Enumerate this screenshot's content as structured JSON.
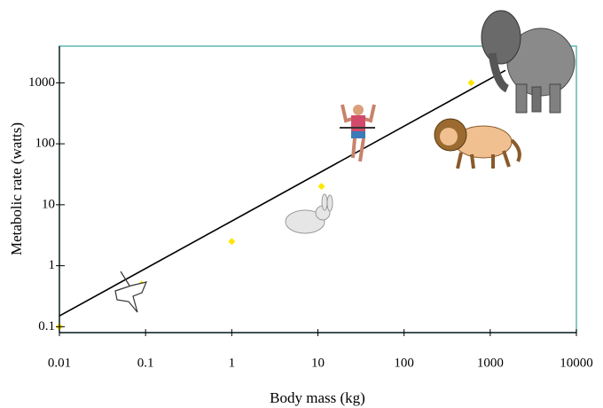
{
  "chart_data": {
    "type": "scatter",
    "x_label": "Body mass (kg)",
    "y_label": "Metabolic rate (watts)",
    "xscale": "log",
    "yscale": "log",
    "xlim": [
      0.01,
      10000
    ],
    "ylim": [
      0.08,
      4000
    ],
    "xticks": [
      0.01,
      0.1,
      1,
      10,
      100,
      1000,
      10000
    ],
    "yticks": [
      0.1,
      1,
      10,
      100,
      1000
    ],
    "frame_color": "#5fb8b0",
    "series": [
      {
        "type": "scatter",
        "color": "#ffe600",
        "x": [
          0.01,
          0.09,
          1,
          11,
          600
        ],
        "values": [
          0.1,
          0.5,
          2.5,
          20,
          1000
        ]
      },
      {
        "type": "line",
        "color": "#000000",
        "x": [
          0.01,
          1500
        ],
        "values": [
          0.15,
          1600
        ]
      }
    ]
  }
}
